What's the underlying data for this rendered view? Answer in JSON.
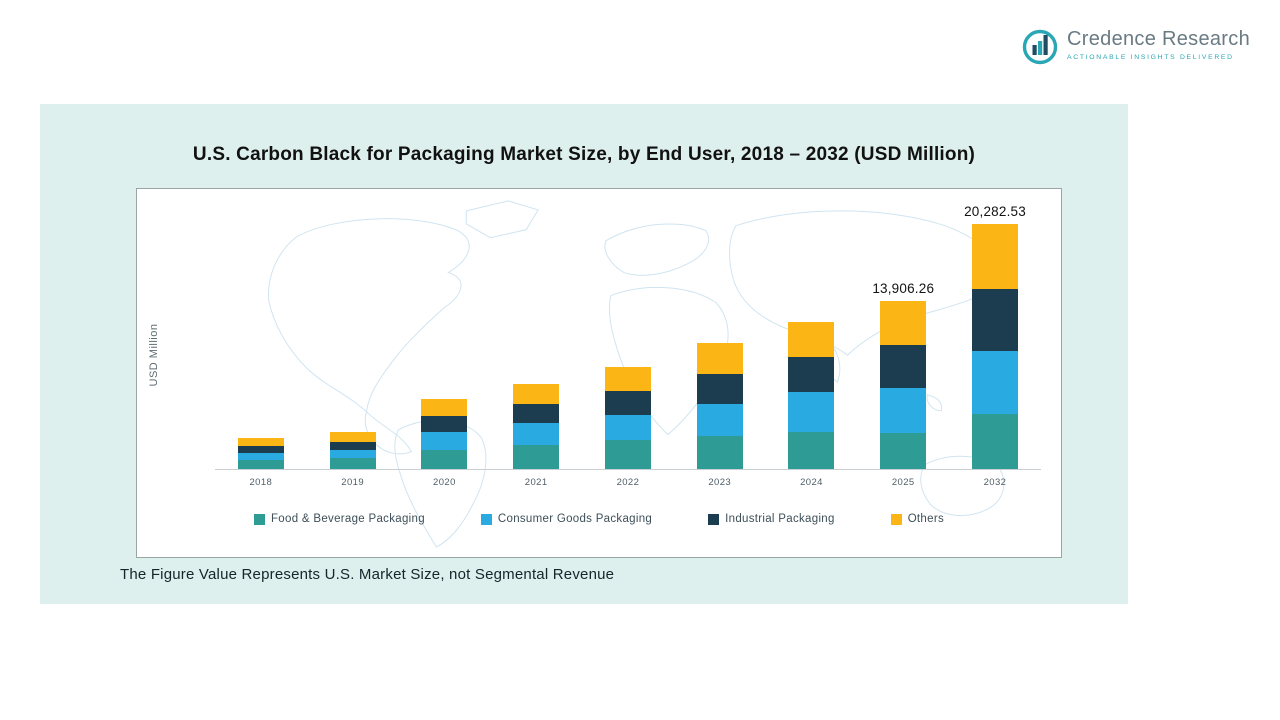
{
  "logo": {
    "brand": "Credence Research",
    "tagline": "Actionable Insights Delivered"
  },
  "colors": {
    "panel_bg": "#def0ed",
    "accent_teal": "#2aa7b4",
    "map_line": "#c8e0ee"
  },
  "chart_data": {
    "type": "bar",
    "stacked": true,
    "title": "U.S. Carbon Black for Packaging Market Size, by End User, 2018 – 2032 (USD Million)",
    "ylabel": "USD Million",
    "xlabel": "",
    "grid": false,
    "legend_position": "bottom",
    "categories": [
      "2018",
      "2019",
      "2020",
      "2021",
      "2022",
      "2023",
      "2024",
      "2025",
      "2032"
    ],
    "series": [
      {
        "name": "Food & Beverage Packaging",
        "color": "#2e9b94",
        "values": [
          708,
          902,
          1610,
          1996,
          2383,
          2705,
          3027,
          3023.26,
          4553
        ]
      },
      {
        "name": "Consumer Goods Packaging",
        "color": "#29abe2",
        "values": [
          644,
          708,
          1481,
          1803,
          2125,
          2705,
          3349,
          3671,
          5215
        ]
      },
      {
        "name": "Industrial Packaging",
        "color": "#1b3d4f",
        "values": [
          580,
          644,
          1288,
          1610,
          1932,
          2447,
          2898,
          3606,
          5133
        ]
      },
      {
        "name": "Others",
        "color": "#fbb616",
        "values": [
          644,
          773,
          1417,
          1674,
          1996,
          2576,
          2898,
          3606,
          5381.53
        ]
      }
    ],
    "totals": [
      2576,
      3027,
      5796,
      7083,
      8436,
      10433,
      12172,
      13906.26,
      20282.53
    ],
    "bar_labels": [
      "",
      "",
      "",
      "",
      "",
      "",
      "",
      "13,906.26",
      "20,282.53"
    ],
    "ylim": [
      0,
      21000
    ],
    "note": "The Figure Value Represents U.S. Market Size, not Segmental Revenue"
  }
}
